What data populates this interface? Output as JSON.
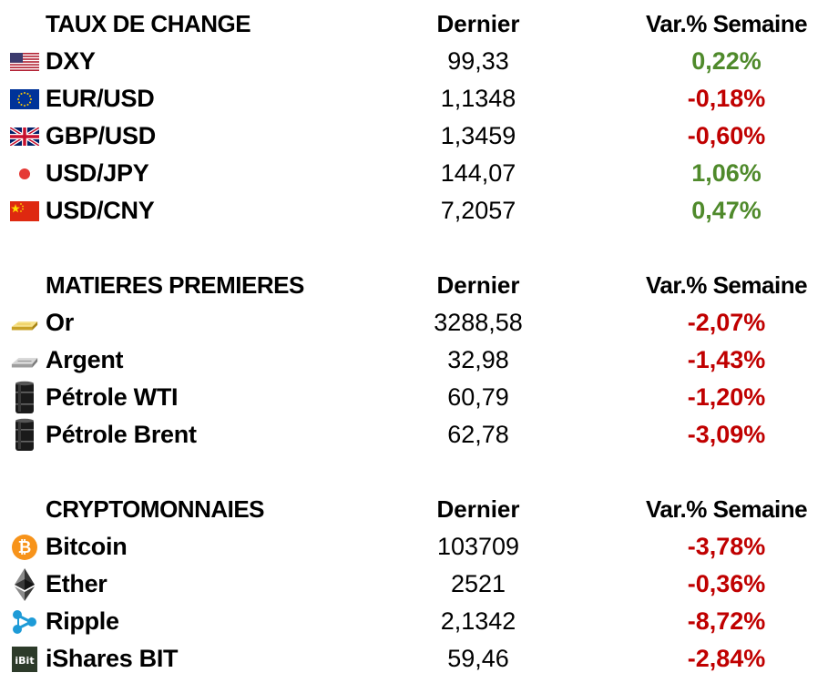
{
  "sections": [
    {
      "title": "TAUX DE CHANGE",
      "col_last": "Dernier",
      "col_var": "Var.% Semaine",
      "rows": [
        {
          "name": "DXY",
          "last": "99,33",
          "var": "0,22%",
          "trend": "pos",
          "icon": "us-flag-icon"
        },
        {
          "name": "EUR/USD",
          "last": "1,1348",
          "var": "-0,18%",
          "trend": "neg",
          "icon": "eu-flag-icon"
        },
        {
          "name": "GBP/USD",
          "last": "1,3459",
          "var": "-0,60%",
          "trend": "neg",
          "icon": "uk-flag-icon"
        },
        {
          "name": "USD/JPY",
          "last": "144,07",
          "var": "1,06%",
          "trend": "pos",
          "icon": "japan-flag-icon"
        },
        {
          "name": "USD/CNY",
          "last": "7,2057",
          "var": "0,47%",
          "trend": "pos",
          "icon": "china-flag-icon"
        }
      ]
    },
    {
      "title": "MATIERES PREMIERES",
      "col_last": "Dernier",
      "col_var": "Var.% Semaine",
      "rows": [
        {
          "name": "Or",
          "last": "3288,58",
          "var": "-2,07%",
          "trend": "neg",
          "icon": "gold-bar-icon"
        },
        {
          "name": "Argent",
          "last": "32,98",
          "var": "-1,43%",
          "trend": "neg",
          "icon": "silver-bar-icon"
        },
        {
          "name": "Pétrole WTI",
          "last": "60,79",
          "var": "-1,20%",
          "trend": "neg",
          "icon": "oil-barrel-icon"
        },
        {
          "name": "Pétrole Brent",
          "last": "62,78",
          "var": "-3,09%",
          "trend": "neg",
          "icon": "oil-barrel-icon"
        }
      ]
    },
    {
      "title": "CRYPTOMONNAIES",
      "col_last": "Dernier",
      "col_var": "Var.% Semaine",
      "rows": [
        {
          "name": "Bitcoin",
          "last": "103709",
          "var": "-3,78%",
          "trend": "neg",
          "icon": "bitcoin-icon"
        },
        {
          "name": "Ether",
          "last": "2521",
          "var": "-0,36%",
          "trend": "neg",
          "icon": "ethereum-icon"
        },
        {
          "name": "Ripple",
          "last": "2,1342",
          "var": "-8,72%",
          "trend": "neg",
          "icon": "ripple-icon"
        },
        {
          "name": "iShares BIT",
          "last": "59,46",
          "var": "-2,84%",
          "trend": "neg",
          "icon": "ishares-bit-icon",
          "icon_text": "iBit"
        }
      ]
    }
  ],
  "colors": {
    "positive": "#4f8a2b",
    "negative": "#c00000"
  }
}
